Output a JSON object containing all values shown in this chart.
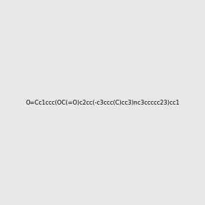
{
  "molecule_smiles": "O=Cc1ccc(OC(=O)c2cc(-c3ccc(C)cc3)nc3ccccc23)cc1",
  "title": "",
  "background_color": "#e8e8e8",
  "bond_color": "#2a2a2a",
  "oxygen_color": "#ff0000",
  "nitrogen_color": "#0000ff",
  "carbon_color": "#404040",
  "hydrogen_color": "#404040"
}
